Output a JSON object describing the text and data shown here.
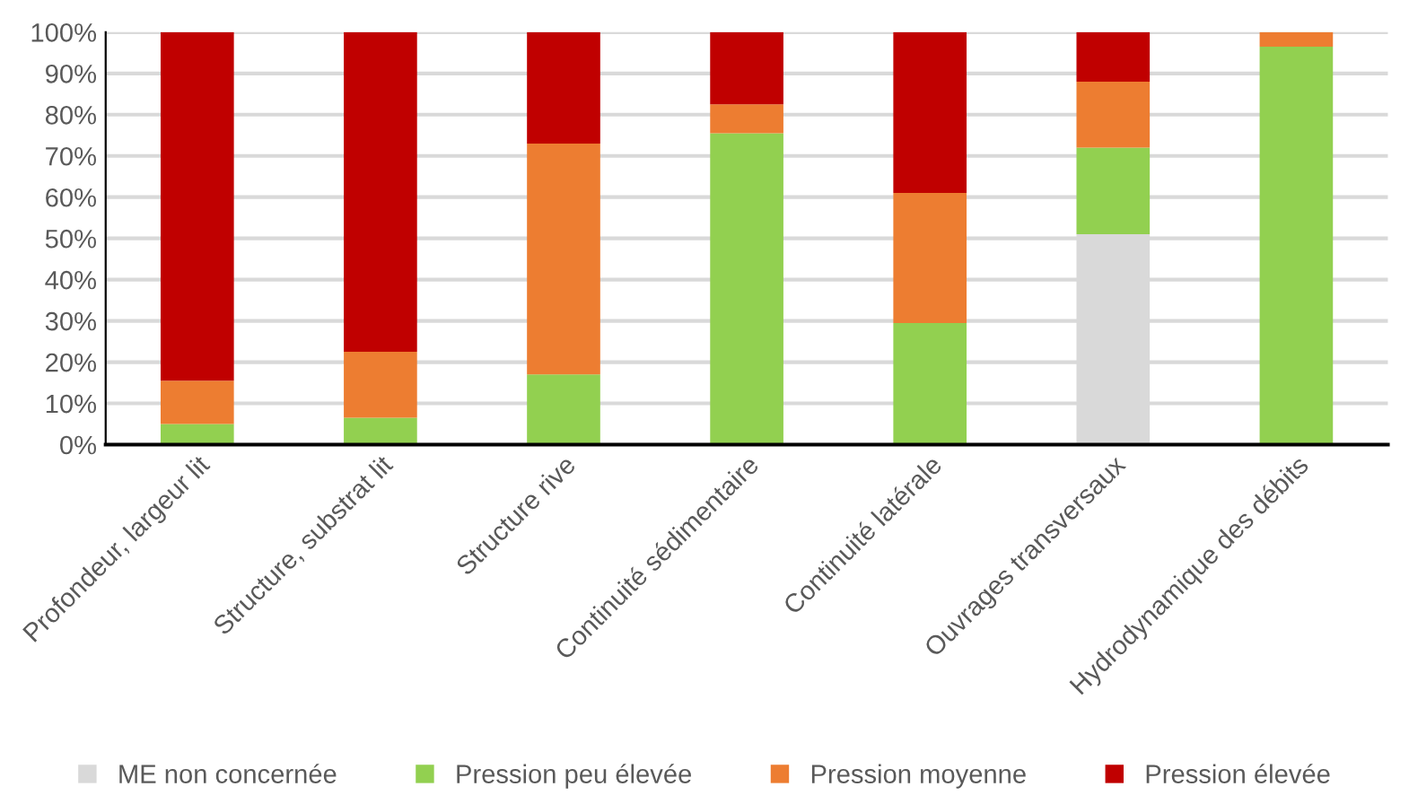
{
  "chart_data": {
    "type": "bar",
    "stacked": true,
    "categories": [
      "Profondeur, largeur lit",
      "Structure, substrat lit",
      "Structure rive",
      "Continuité sédimentaire",
      "Continuité latérale",
      "Ouvrages transversaux",
      "Hydrodynamique des débits"
    ],
    "series": [
      {
        "name": "ME non concernée",
        "color": "#d9d9d9",
        "values": [
          0,
          0,
          0,
          0,
          0,
          51,
          0
        ]
      },
      {
        "name": "Pression peu élevée",
        "color": "#92d050",
        "values": [
          5,
          6.5,
          17,
          75.5,
          29.5,
          21,
          96.5
        ]
      },
      {
        "name": "Pression moyenne",
        "color": "#ed7d31",
        "values": [
          10.5,
          16,
          56,
          7,
          31.5,
          16,
          3.5
        ]
      },
      {
        "name": "Pression élevée",
        "color": "#c00000",
        "values": [
          84.5,
          77.5,
          27,
          17.5,
          39,
          12,
          0
        ]
      }
    ],
    "ylim": [
      0,
      100
    ],
    "yticks": [
      {
        "value": 0,
        "label": "0%"
      },
      {
        "value": 10,
        "label": "10%"
      },
      {
        "value": 20,
        "label": "20%"
      },
      {
        "value": 30,
        "label": "30%"
      },
      {
        "value": 40,
        "label": "40%"
      },
      {
        "value": 50,
        "label": "50%"
      },
      {
        "value": 60,
        "label": "60%"
      },
      {
        "value": 70,
        "label": "70%"
      },
      {
        "value": 80,
        "label": "80%"
      },
      {
        "value": 90,
        "label": "90%"
      },
      {
        "value": 100,
        "label": "100%"
      }
    ],
    "grid": "y",
    "legend": "bottom"
  }
}
